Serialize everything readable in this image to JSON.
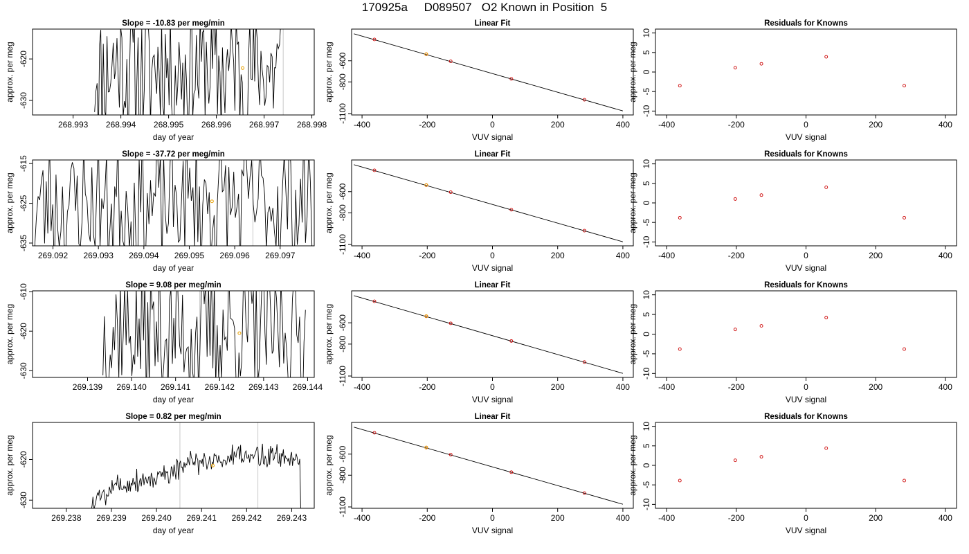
{
  "figure": {
    "main_title": "170925a     D089507   O2 Known in Position  5"
  },
  "colors": {
    "trace": "#000000",
    "known_points": "#cc0000",
    "highlight_point": "#e8a000",
    "vertical_marker": "#c8c8c8",
    "frame": "#000000"
  },
  "chart_data": [
    {
      "type": "line",
      "panel": "trace",
      "row": 1,
      "title": "Slope =  -10.83  per meg/min",
      "xlabel": "day of year",
      "ylabel": "approx. per meg",
      "xlim": [
        268.99215,
        268.99805
      ],
      "ylim": [
        -633.5,
        -612.8
      ],
      "xticks": [
        "268.993",
        "268.994",
        "268.995",
        "268.996",
        "268.997",
        "268.998"
      ],
      "yticks": [
        "-620",
        "-630"
      ],
      "trace_range": [
        268.99345,
        268.99735
      ],
      "trace_baseline": -622,
      "trace_amplitude": 13,
      "trace_segments": 150,
      "trace_seed": 11,
      "markers": [
        268.9974
      ],
      "highlight": {
        "x": 268.99655,
        "y": -622.2
      }
    },
    {
      "type": "scatter",
      "panel": "fit",
      "row": 1,
      "title": "Linear Fit",
      "xlabel": "VUV signal",
      "ylabel": "approx. per meg",
      "xlim": [
        -432,
        432
      ],
      "ylim": [
        -1113,
        -300
      ],
      "xticks": [
        "-400",
        "-200",
        "0",
        "200",
        "400"
      ],
      "yticks": [
        "-600",
        "-800",
        "-1100"
      ],
      "line": {
        "x": [
          -425,
          400
        ],
        "y": [
          -345,
          -1075
        ]
      },
      "points": [
        {
          "x": -362,
          "y": -398
        },
        {
          "x": -203,
          "y": -539
        },
        {
          "x": -128,
          "y": -605
        },
        {
          "x": 58,
          "y": -771
        },
        {
          "x": 282,
          "y": -969
        }
      ],
      "highlight": {
        "x": -203,
        "y": -537
      }
    },
    {
      "type": "scatter",
      "panel": "residual",
      "row": 1,
      "title": "Residuals for Knowns",
      "xlabel": "VUV signal",
      "ylabel": "approx. per meg",
      "xlim": [
        -432,
        432
      ],
      "ylim": [
        -11,
        11
      ],
      "xticks": [
        "-400",
        "-200",
        "0",
        "200",
        "400"
      ],
      "yticks": [
        "10",
        "5",
        "0",
        "-5",
        "-10"
      ],
      "points": [
        {
          "x": -362,
          "y": -3.5
        },
        {
          "x": -203,
          "y": 1.1
        },
        {
          "x": -128,
          "y": 2.1
        },
        {
          "x": 58,
          "y": 3.9
        },
        {
          "x": 282,
          "y": -3.5
        }
      ]
    },
    {
      "type": "line",
      "panel": "trace",
      "row": 2,
      "title": "Slope =  -37.72  per meg/min",
      "xlabel": "day of year",
      "ylabel": "approx. per meg",
      "xlim": [
        269.09155,
        269.09775
      ],
      "ylim": [
        -635.7,
        -614.1
      ],
      "xticks": [
        "269.092",
        "269.093",
        "269.094",
        "269.095",
        "269.096",
        "269.097"
      ],
      "yticks": [
        "-615",
        "-625",
        "-635"
      ],
      "trace_range": [
        269.0916,
        269.0977
      ],
      "trace_baseline": -625,
      "trace_amplitude": 13,
      "trace_segments": 170,
      "trace_seed": 23,
      "markers": [
        269.0964
      ],
      "highlight": {
        "x": 269.0955,
        "y": -624.5
      }
    },
    {
      "type": "scatter",
      "panel": "fit",
      "row": 2,
      "title": "Linear Fit",
      "xlabel": "VUV signal",
      "ylabel": "approx. per meg",
      "xlim": [
        -432,
        432
      ],
      "ylim": [
        -1113,
        -300
      ],
      "xticks": [
        "-400",
        "-200",
        "0",
        "200",
        "400"
      ],
      "yticks": [
        "-600",
        "-800",
        "-1100"
      ],
      "line": {
        "x": [
          -425,
          400
        ],
        "y": [
          -345,
          -1075
        ]
      },
      "points": [
        {
          "x": -362,
          "y": -398
        },
        {
          "x": -203,
          "y": -539
        },
        {
          "x": -128,
          "y": -605
        },
        {
          "x": 58,
          "y": -771
        },
        {
          "x": 282,
          "y": -969
        }
      ],
      "highlight": {
        "x": -203,
        "y": -537
      }
    },
    {
      "type": "scatter",
      "panel": "residual",
      "row": 2,
      "title": "Residuals for Knowns",
      "xlabel": "VUV signal",
      "ylabel": "approx. per meg",
      "xlim": [
        -432,
        432
      ],
      "ylim": [
        -11,
        11
      ],
      "xticks": [
        "-400",
        "-200",
        "0",
        "200",
        "400"
      ],
      "yticks": [
        "10",
        "5",
        "0",
        "-5",
        "-10"
      ],
      "points": [
        {
          "x": -362,
          "y": -3.8
        },
        {
          "x": -203,
          "y": 1.0
        },
        {
          "x": -128,
          "y": 2.0
        },
        {
          "x": 58,
          "y": 4.0
        },
        {
          "x": 282,
          "y": -3.8
        }
      ]
    },
    {
      "type": "line",
      "panel": "trace",
      "row": 3,
      "title": "Slope =  9.08  per meg/min",
      "xlabel": "day of year",
      "ylabel": "approx. per meg",
      "xlim": [
        269.13775,
        269.14415
      ],
      "ylim": [
        -631.7,
        -609.8
      ],
      "xticks": [
        "269.139",
        "269.140",
        "269.141",
        "269.142",
        "269.143",
        "269.144"
      ],
      "yticks": [
        "-610",
        "-620",
        "-630"
      ],
      "trace_range": [
        269.13935,
        269.14395
      ],
      "trace_baseline": -620,
      "trace_amplitude": 14,
      "trace_segments": 140,
      "trace_seed": 37,
      "markers": [
        269.14155,
        269.1429
      ],
      "highlight": {
        "x": 269.14245,
        "y": -620.5
      }
    },
    {
      "type": "scatter",
      "panel": "fit",
      "row": 3,
      "title": "Linear Fit",
      "xlabel": "VUV signal",
      "ylabel": "approx. per meg",
      "xlim": [
        -432,
        432
      ],
      "ylim": [
        -1113,
        -300
      ],
      "xticks": [
        "-400",
        "-200",
        "0",
        "200",
        "400"
      ],
      "yticks": [
        "-600",
        "-800",
        "-1100"
      ],
      "line": {
        "x": [
          -425,
          400
        ],
        "y": [
          -345,
          -1075
        ]
      },
      "points": [
        {
          "x": -362,
          "y": -398
        },
        {
          "x": -203,
          "y": -539
        },
        {
          "x": -128,
          "y": -605
        },
        {
          "x": 58,
          "y": -771
        },
        {
          "x": 282,
          "y": -969
        }
      ],
      "highlight": {
        "x": -203,
        "y": -537
      }
    },
    {
      "type": "scatter",
      "panel": "residual",
      "row": 3,
      "title": "Residuals for Knowns",
      "xlabel": "VUV signal",
      "ylabel": "approx. per meg",
      "xlim": [
        -432,
        432
      ],
      "ylim": [
        -11,
        11
      ],
      "xticks": [
        "-400",
        "-200",
        "0",
        "200",
        "400"
      ],
      "yticks": [
        "10",
        "5",
        "0",
        "-5",
        "-10"
      ],
      "points": [
        {
          "x": -362,
          "y": -3.8
        },
        {
          "x": -203,
          "y": 1.2
        },
        {
          "x": -128,
          "y": 2.1
        },
        {
          "x": 58,
          "y": 4.2
        },
        {
          "x": 282,
          "y": -3.8
        }
      ]
    },
    {
      "type": "line",
      "panel": "trace",
      "row": 4,
      "title": "Slope =  0.82  per meg/min",
      "xlabel": "day of year",
      "ylabel": "approx. per meg",
      "xlim": [
        269.23725,
        269.2435
      ],
      "ylim": [
        -632.0,
        -610.9
      ],
      "xticks": [
        "269.238",
        "269.239",
        "269.240",
        "269.241",
        "269.242",
        "269.243"
      ],
      "yticks": [
        "-620",
        "-630"
      ],
      "trace_range": [
        269.23855,
        269.2432
      ],
      "trace_mode": "smooth",
      "trace_start": -632.5,
      "trace_end": -632.5,
      "trace_anchors": [
        {
          "x": 269.2386,
          "y": -630.5
        },
        {
          "x": 269.239,
          "y": -626.5
        },
        {
          "x": 269.2395,
          "y": -625.5
        },
        {
          "x": 269.24,
          "y": -624.5
        },
        {
          "x": 269.2405,
          "y": -622.0
        },
        {
          "x": 269.241,
          "y": -620.5
        },
        {
          "x": 269.2415,
          "y": -620.0
        },
        {
          "x": 269.242,
          "y": -619.5
        },
        {
          "x": 269.2425,
          "y": -619.0
        },
        {
          "x": 269.243,
          "y": -619.5
        }
      ],
      "trace_amplitude": 2.2,
      "trace_segments": 230,
      "trace_seed": 5,
      "markers": [
        269.24052,
        269.24225
      ],
      "highlight": {
        "x": 269.24125,
        "y": -621.5
      }
    },
    {
      "type": "scatter",
      "panel": "fit",
      "row": 4,
      "title": "Linear Fit",
      "xlabel": "VUV signal",
      "ylabel": "approx. per meg",
      "xlim": [
        -432,
        432
      ],
      "ylim": [
        -1113,
        -300
      ],
      "xticks": [
        "-400",
        "-200",
        "0",
        "200",
        "400"
      ],
      "yticks": [
        "-600",
        "-800",
        "-1100"
      ],
      "line": {
        "x": [
          -425,
          400
        ],
        "y": [
          -345,
          -1075
        ]
      },
      "points": [
        {
          "x": -362,
          "y": -398
        },
        {
          "x": -203,
          "y": -539
        },
        {
          "x": -128,
          "y": -605
        },
        {
          "x": 58,
          "y": -771
        },
        {
          "x": 282,
          "y": -969
        }
      ],
      "highlight": {
        "x": -203,
        "y": -537
      }
    },
    {
      "type": "scatter",
      "panel": "residual",
      "row": 4,
      "title": "Residuals for Knowns",
      "xlabel": "VUV signal",
      "ylabel": "approx. per meg",
      "xlim": [
        -432,
        432
      ],
      "ylim": [
        -11,
        11
      ],
      "xticks": [
        "-400",
        "-200",
        "0",
        "200",
        "400"
      ],
      "yticks": [
        "10",
        "5",
        "0",
        "-5",
        "-10"
      ],
      "points": [
        {
          "x": -362,
          "y": -3.9
        },
        {
          "x": -203,
          "y": 1.3
        },
        {
          "x": -128,
          "y": 2.2
        },
        {
          "x": 58,
          "y": 4.4
        },
        {
          "x": 282,
          "y": -3.9
        }
      ]
    }
  ]
}
